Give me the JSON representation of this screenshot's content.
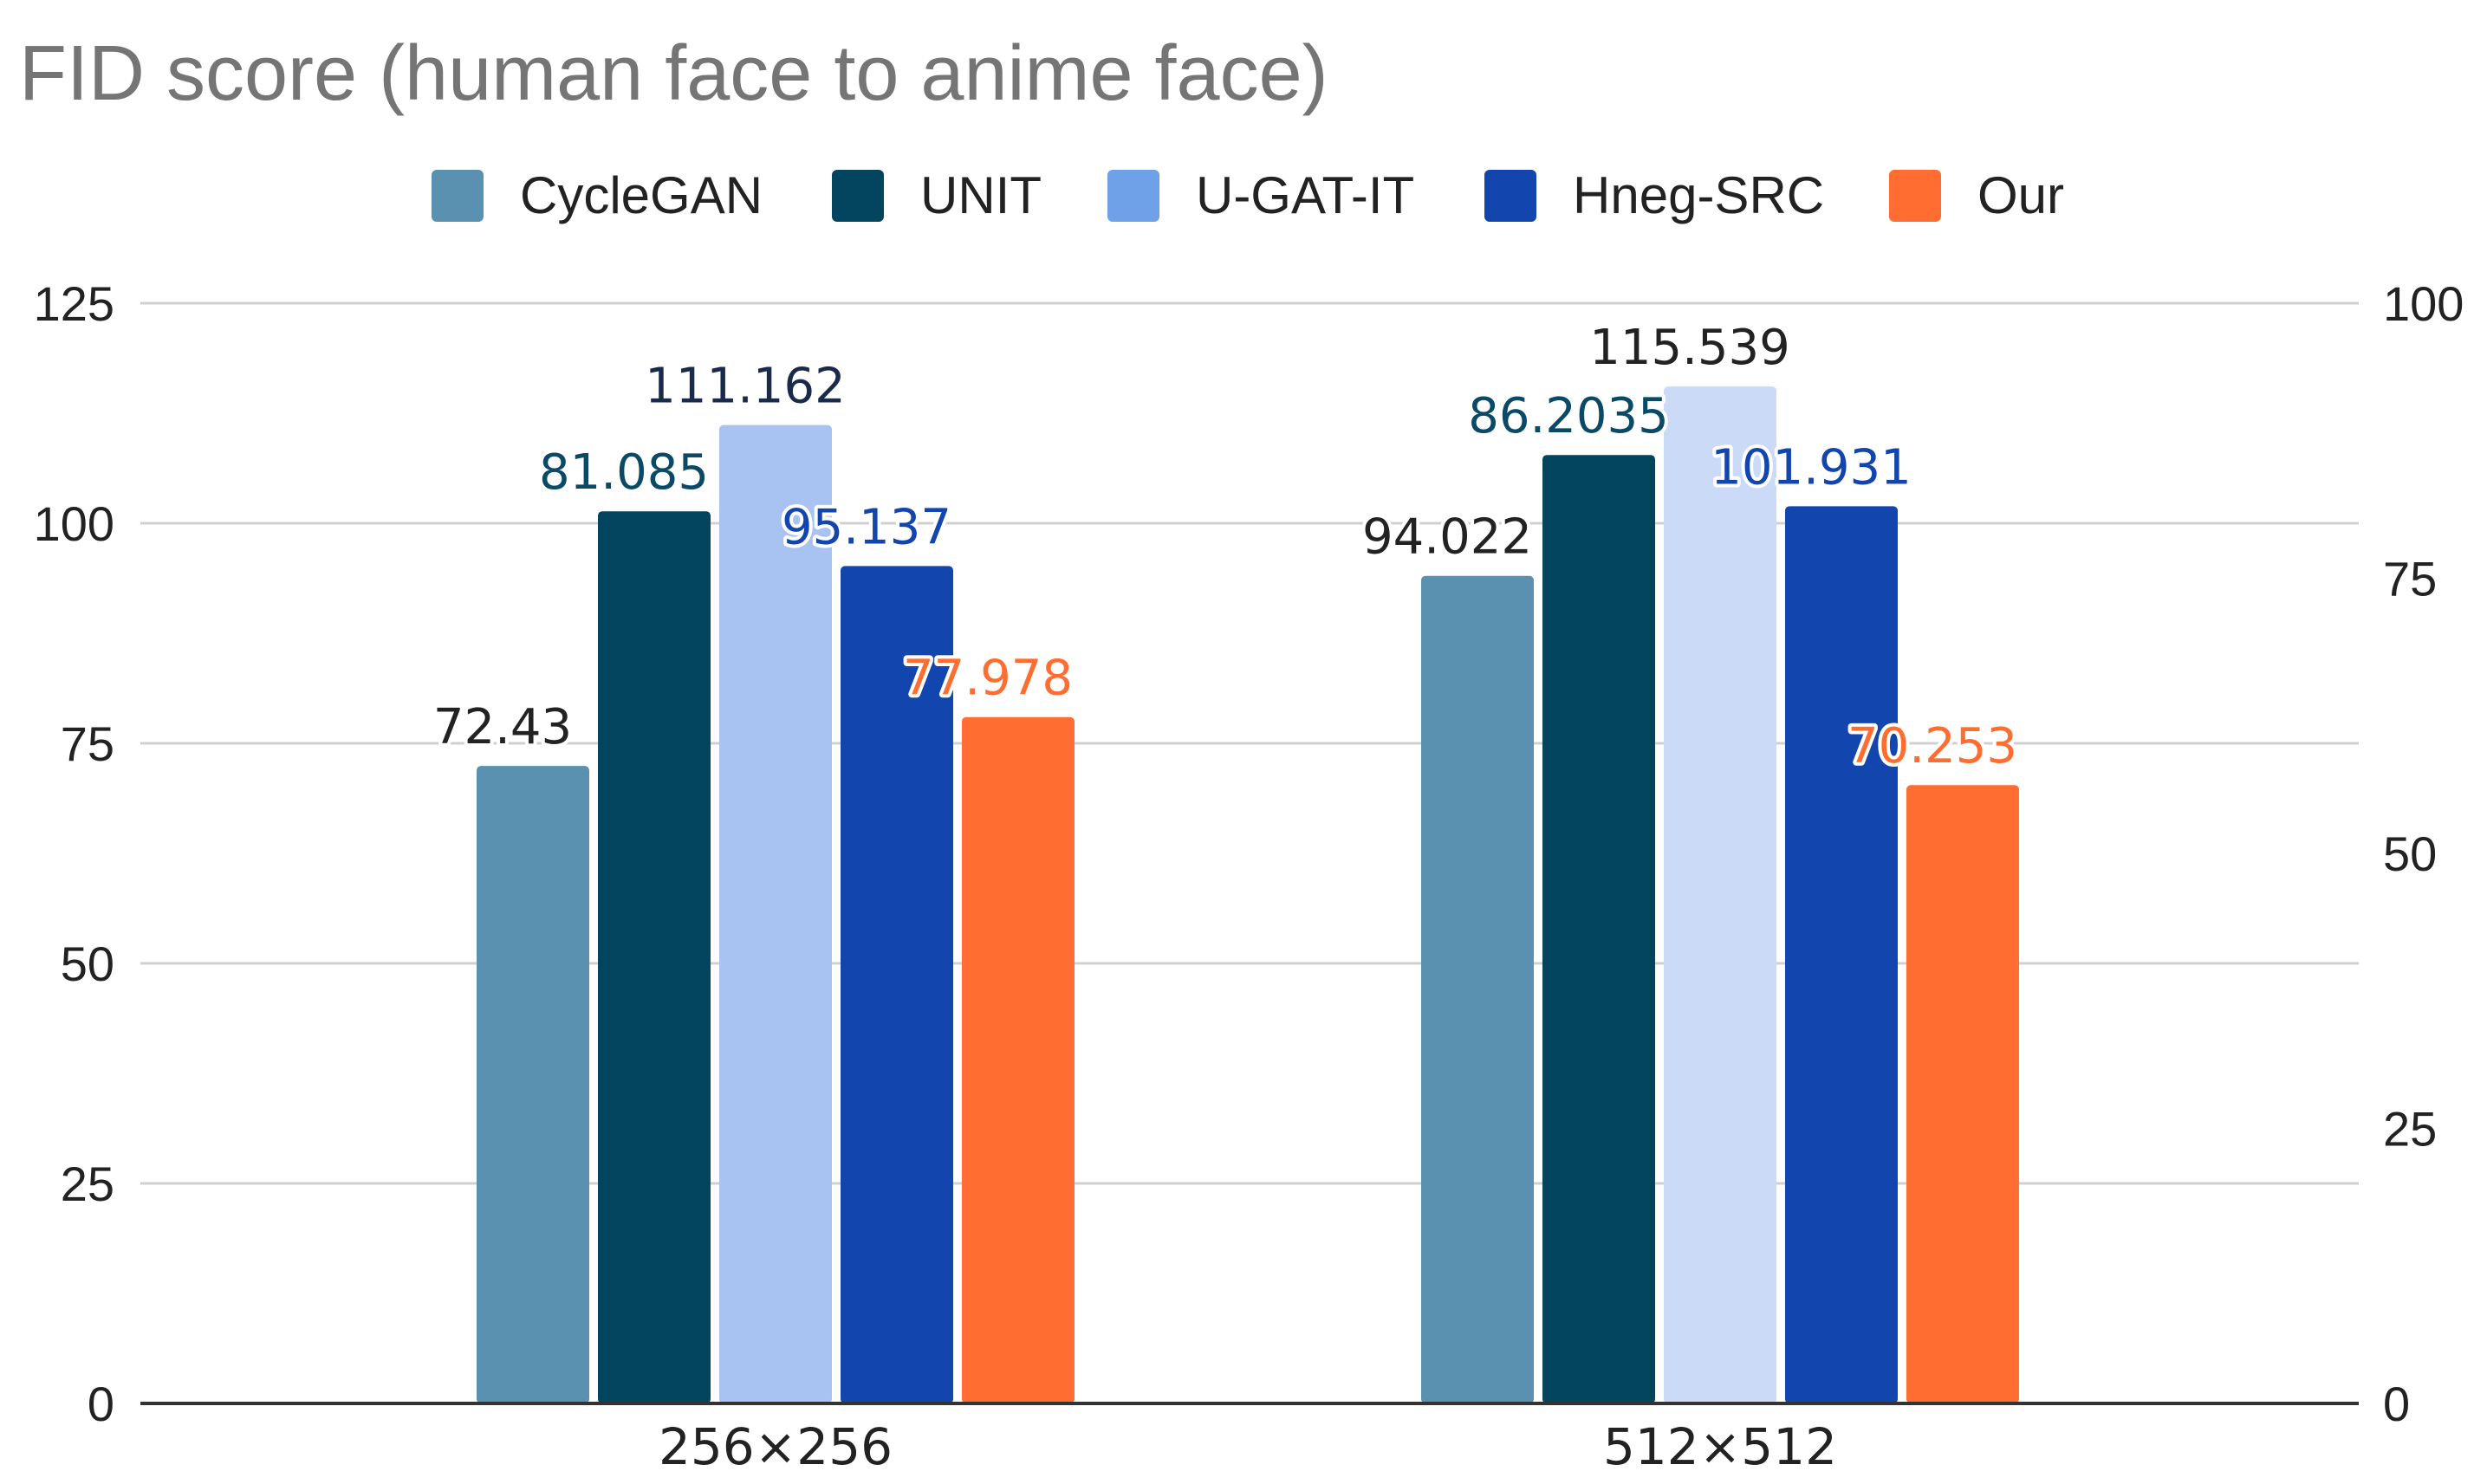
{
  "chart_data": {
    "type": "bar",
    "title": "FID score (human face to anime face)",
    "categories": [
      "256×256",
      "512×512"
    ],
    "series": [
      {
        "name": "CycleGAN",
        "color": "#5a91b0",
        "axis": "left",
        "values": [
          72.43,
          94.022
        ],
        "labels": [
          "72.43",
          "94.022"
        ],
        "label_colors": [
          "#222222",
          "#222222"
        ]
      },
      {
        "name": "UNIT",
        "color": "#03445e",
        "axis": "right",
        "values": [
          81.085,
          86.2035
        ],
        "labels": [
          "81.085",
          "86.2035"
        ],
        "label_colors": [
          "#0a4a66",
          "#0a4a66"
        ]
      },
      {
        "name": "U-GAT-IT",
        "color": "#6fa1e8",
        "bar_colors": [
          "#a8c3f2",
          "#cbdaf6"
        ],
        "axis": "left",
        "values": [
          111.162,
          115.539
        ],
        "labels": [
          "111.162",
          "115.539"
        ],
        "label_colors": [
          "#1a2a4a",
          "#222222"
        ]
      },
      {
        "name": "Hneg-SRC",
        "color": "#1245ad",
        "axis": "left",
        "values": [
          95.137,
          101.931
        ],
        "labels": [
          "95.137",
          "101.931"
        ],
        "label_colors": [
          "#1245ad",
          "#1245ad"
        ]
      },
      {
        "name": "Our",
        "color": "#ff6d31",
        "axis": "left",
        "values": [
          77.978,
          70.253
        ],
        "labels": [
          "77.978",
          "70.253"
        ],
        "label_colors": [
          "#ff6d31",
          "#ff6d31"
        ]
      }
    ],
    "left_axis": {
      "min": 0,
      "max": 125,
      "ticks": [
        0,
        25,
        50,
        75,
        100,
        125
      ]
    },
    "right_axis": {
      "min": 0,
      "max": 100,
      "ticks": [
        0,
        25,
        50,
        75,
        100
      ]
    },
    "grid": true,
    "legend_position": "top-center",
    "xlabel": "",
    "ylabel": ""
  }
}
